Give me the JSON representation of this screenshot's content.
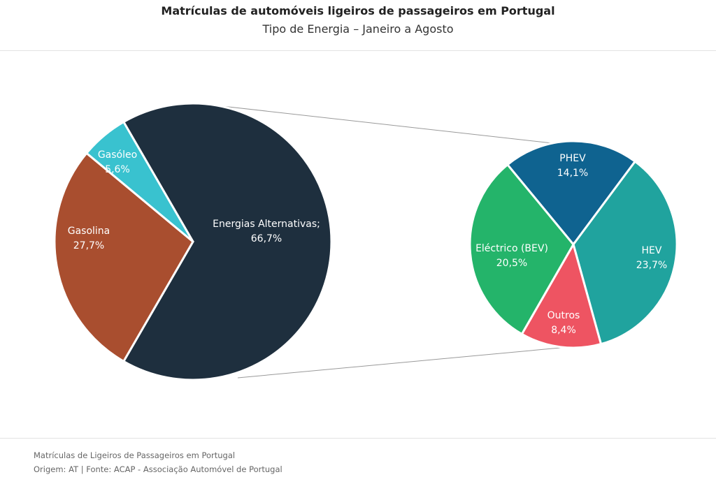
{
  "chart_data": {
    "type": "pie",
    "subtype": "pie-of-pie",
    "title": "Matrículas de automóveis ligeiros de passageiros em Portugal",
    "subtitle": "Tipo de Energia – Janeiro a Agosto",
    "main_pie": [
      {
        "label": "Energias Alternativas;",
        "value": 66.7,
        "display": "66,7%",
        "color": "#1e2f3e"
      },
      {
        "label": "Gasolina",
        "value": 27.7,
        "display": "27,7%",
        "color": "#a94e2f"
      },
      {
        "label": "Gasóleo",
        "value": 5.6,
        "display": "5,6%",
        "color": "#39c2cf"
      }
    ],
    "secondary_pie": [
      {
        "label": "PHEV",
        "value": 14.1,
        "display": "14,1%",
        "color": "#0f6390"
      },
      {
        "label": "HEV",
        "value": 23.7,
        "display": "23,7%",
        "color": "#20a39e"
      },
      {
        "label": "Outros",
        "value": 8.4,
        "display": "8,4%",
        "color": "#ee5462"
      },
      {
        "label": "Eléctrico (BEV)",
        "value": 20.5,
        "display": "20,5%",
        "color": "#24b46a"
      }
    ]
  },
  "footer": {
    "line1": "Matrículas de Ligeiros de Passageiros em Portugal",
    "line2": "Origem: AT | Fonte: ACAP - Associação Automóvel de Portugal"
  }
}
